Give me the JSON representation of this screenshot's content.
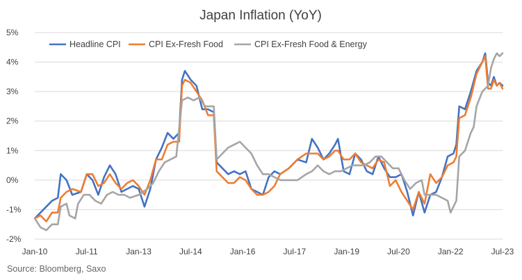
{
  "chart_data": {
    "type": "line",
    "title": "Japan Inflation (YoY)",
    "xlabel": "",
    "ylabel": "",
    "ylim": [
      -2,
      5
    ],
    "y_ticks": [
      "-2%",
      "-1%",
      "0%",
      "1%",
      "2%",
      "3%",
      "4%",
      "5%"
    ],
    "x_ticks": [
      "Jan-10",
      "Jul-11",
      "Jan-13",
      "Jul-14",
      "Jan-16",
      "Jul-17",
      "Jan-19",
      "Jul-20",
      "Jan-22",
      "Jul-23"
    ],
    "x_range": [
      "2010-01",
      "2023-07"
    ],
    "grid": true,
    "legend_position": "top-left",
    "series": [
      {
        "name": "Headline CPI",
        "color": "#4472C4",
        "points": [
          [
            "2010-01",
            -1.3
          ],
          [
            "2010-03",
            -1.1
          ],
          [
            "2010-05",
            -0.9
          ],
          [
            "2010-07",
            -0.7
          ],
          [
            "2010-09",
            -0.6
          ],
          [
            "2010-10",
            0.2
          ],
          [
            "2010-12",
            0.0
          ],
          [
            "2011-02",
            -0.5
          ],
          [
            "2011-05",
            -0.4
          ],
          [
            "2011-07",
            0.2
          ],
          [
            "2011-09",
            0.0
          ],
          [
            "2011-11",
            -0.5
          ],
          [
            "2012-01",
            0.1
          ],
          [
            "2012-03",
            0.5
          ],
          [
            "2012-05",
            0.2
          ],
          [
            "2012-07",
            -0.4
          ],
          [
            "2012-09",
            -0.3
          ],
          [
            "2012-11",
            -0.2
          ],
          [
            "2013-01",
            -0.3
          ],
          [
            "2013-03",
            -0.9
          ],
          [
            "2013-05",
            -0.3
          ],
          [
            "2013-07",
            0.7
          ],
          [
            "2013-09",
            1.1
          ],
          [
            "2013-11",
            1.6
          ],
          [
            "2014-01",
            1.4
          ],
          [
            "2014-03",
            1.6
          ],
          [
            "2014-04",
            3.4
          ],
          [
            "2014-05",
            3.7
          ],
          [
            "2014-07",
            3.4
          ],
          [
            "2014-09",
            3.2
          ],
          [
            "2014-11",
            2.4
          ],
          [
            "2015-01",
            2.4
          ],
          [
            "2015-03",
            2.3
          ],
          [
            "2015-04",
            0.6
          ],
          [
            "2015-06",
            0.4
          ],
          [
            "2015-08",
            0.2
          ],
          [
            "2015-10",
            0.3
          ],
          [
            "2015-12",
            0.2
          ],
          [
            "2016-02",
            0.3
          ],
          [
            "2016-04",
            -0.3
          ],
          [
            "2016-06",
            -0.4
          ],
          [
            "2016-08",
            -0.5
          ],
          [
            "2016-10",
            0.1
          ],
          [
            "2016-12",
            0.3
          ],
          [
            "2017-02",
            0.2
          ],
          [
            "2017-05",
            0.4
          ],
          [
            "2017-08",
            0.7
          ],
          [
            "2017-11",
            0.6
          ],
          [
            "2018-01",
            1.4
          ],
          [
            "2018-03",
            1.1
          ],
          [
            "2018-05",
            0.7
          ],
          [
            "2018-07",
            0.9
          ],
          [
            "2018-09",
            1.2
          ],
          [
            "2018-10",
            1.4
          ],
          [
            "2018-12",
            0.3
          ],
          [
            "2019-02",
            0.2
          ],
          [
            "2019-04",
            0.9
          ],
          [
            "2019-06",
            0.7
          ],
          [
            "2019-08",
            0.3
          ],
          [
            "2019-10",
            0.2
          ],
          [
            "2019-12",
            0.8
          ],
          [
            "2020-02",
            0.4
          ],
          [
            "2020-04",
            0.1
          ],
          [
            "2020-06",
            0.1
          ],
          [
            "2020-08",
            0.2
          ],
          [
            "2020-10",
            -0.4
          ],
          [
            "2020-12",
            -1.2
          ],
          [
            "2021-02",
            -0.4
          ],
          [
            "2021-04",
            -1.1
          ],
          [
            "2021-06",
            -0.5
          ],
          [
            "2021-08",
            -0.4
          ],
          [
            "2021-10",
            0.1
          ],
          [
            "2021-12",
            0.8
          ],
          [
            "2022-02",
            0.9
          ],
          [
            "2022-03",
            1.2
          ],
          [
            "2022-04",
            2.5
          ],
          [
            "2022-06",
            2.4
          ],
          [
            "2022-08",
            3.0
          ],
          [
            "2022-10",
            3.7
          ],
          [
            "2022-12",
            4.0
          ],
          [
            "2023-01",
            4.3
          ],
          [
            "2023-02",
            3.3
          ],
          [
            "2023-03",
            3.2
          ],
          [
            "2023-04",
            3.5
          ],
          [
            "2023-05",
            3.2
          ],
          [
            "2023-06",
            3.3
          ],
          [
            "2023-07",
            3.2
          ]
        ]
      },
      {
        "name": "CPI Ex-Fresh Food",
        "color": "#ED7D31",
        "points": [
          [
            "2010-01",
            -1.3
          ],
          [
            "2010-03",
            -1.2
          ],
          [
            "2010-05",
            -1.4
          ],
          [
            "2010-07",
            -1.1
          ],
          [
            "2010-09",
            -1.1
          ],
          [
            "2010-10",
            -0.6
          ],
          [
            "2010-12",
            -0.4
          ],
          [
            "2011-02",
            -0.3
          ],
          [
            "2011-05",
            -0.4
          ],
          [
            "2011-07",
            0.2
          ],
          [
            "2011-09",
            0.2
          ],
          [
            "2011-11",
            -0.2
          ],
          [
            "2012-01",
            -0.1
          ],
          [
            "2012-03",
            0.2
          ],
          [
            "2012-05",
            -0.1
          ],
          [
            "2012-07",
            -0.3
          ],
          [
            "2012-09",
            -0.1
          ],
          [
            "2012-11",
            0.0
          ],
          [
            "2013-01",
            -0.2
          ],
          [
            "2013-03",
            -0.5
          ],
          [
            "2013-05",
            0.0
          ],
          [
            "2013-07",
            0.7
          ],
          [
            "2013-09",
            0.7
          ],
          [
            "2013-11",
            1.2
          ],
          [
            "2014-01",
            1.3
          ],
          [
            "2014-03",
            1.3
          ],
          [
            "2014-04",
            3.2
          ],
          [
            "2014-05",
            3.4
          ],
          [
            "2014-07",
            3.3
          ],
          [
            "2014-09",
            3.0
          ],
          [
            "2014-11",
            2.7
          ],
          [
            "2015-01",
            2.2
          ],
          [
            "2015-03",
            2.2
          ],
          [
            "2015-04",
            0.3
          ],
          [
            "2015-06",
            0.1
          ],
          [
            "2015-08",
            -0.1
          ],
          [
            "2015-10",
            -0.1
          ],
          [
            "2015-12",
            0.1
          ],
          [
            "2016-02",
            0.0
          ],
          [
            "2016-04",
            -0.3
          ],
          [
            "2016-06",
            -0.5
          ],
          [
            "2016-08",
            -0.5
          ],
          [
            "2016-10",
            -0.4
          ],
          [
            "2016-12",
            -0.2
          ],
          [
            "2017-02",
            0.2
          ],
          [
            "2017-05",
            0.4
          ],
          [
            "2017-08",
            0.7
          ],
          [
            "2017-11",
            0.9
          ],
          [
            "2018-01",
            0.9
          ],
          [
            "2018-03",
            0.9
          ],
          [
            "2018-05",
            0.7
          ],
          [
            "2018-07",
            0.8
          ],
          [
            "2018-09",
            1.0
          ],
          [
            "2018-10",
            1.0
          ],
          [
            "2018-12",
            0.7
          ],
          [
            "2019-02",
            0.7
          ],
          [
            "2019-04",
            0.9
          ],
          [
            "2019-06",
            0.6
          ],
          [
            "2019-08",
            0.5
          ],
          [
            "2019-10",
            0.4
          ],
          [
            "2019-12",
            0.7
          ],
          [
            "2020-02",
            0.6
          ],
          [
            "2020-04",
            -0.2
          ],
          [
            "2020-06",
            0.0
          ],
          [
            "2020-08",
            -0.4
          ],
          [
            "2020-10",
            -0.7
          ],
          [
            "2020-12",
            -1.0
          ],
          [
            "2021-02",
            -0.4
          ],
          [
            "2021-04",
            -0.8
          ],
          [
            "2021-06",
            0.2
          ],
          [
            "2021-08",
            -0.1
          ],
          [
            "2021-10",
            0.1
          ],
          [
            "2021-12",
            0.5
          ],
          [
            "2022-02",
            0.6
          ],
          [
            "2022-03",
            0.8
          ],
          [
            "2022-04",
            2.1
          ],
          [
            "2022-06",
            2.2
          ],
          [
            "2022-08",
            2.8
          ],
          [
            "2022-10",
            3.6
          ],
          [
            "2022-12",
            4.0
          ],
          [
            "2023-01",
            4.2
          ],
          [
            "2023-02",
            3.1
          ],
          [
            "2023-03",
            3.1
          ],
          [
            "2023-04",
            3.4
          ],
          [
            "2023-05",
            3.2
          ],
          [
            "2023-06",
            3.3
          ],
          [
            "2023-07",
            3.1
          ]
        ]
      },
      {
        "name": "CPI Ex-Fresh Food & Energy",
        "color": "#A5A5A5",
        "points": [
          [
            "2010-01",
            -1.3
          ],
          [
            "2010-03",
            -1.6
          ],
          [
            "2010-05",
            -1.7
          ],
          [
            "2010-07",
            -1.5
          ],
          [
            "2010-09",
            -1.5
          ],
          [
            "2010-10",
            -0.9
          ],
          [
            "2010-12",
            -0.8
          ],
          [
            "2011-01",
            -1.2
          ],
          [
            "2011-03",
            -1.3
          ],
          [
            "2011-04",
            -0.8
          ],
          [
            "2011-06",
            -0.5
          ],
          [
            "2011-08",
            -0.5
          ],
          [
            "2011-10",
            -0.7
          ],
          [
            "2011-12",
            -0.8
          ],
          [
            "2012-02",
            -0.5
          ],
          [
            "2012-04",
            -0.4
          ],
          [
            "2012-06",
            -0.5
          ],
          [
            "2012-08",
            -0.5
          ],
          [
            "2012-10",
            -0.6
          ],
          [
            "2013-01",
            -0.5
          ],
          [
            "2013-04",
            -0.3
          ],
          [
            "2013-06",
            -0.1
          ],
          [
            "2013-08",
            0.3
          ],
          [
            "2013-10",
            0.6
          ],
          [
            "2013-12",
            0.7
          ],
          [
            "2014-02",
            0.8
          ],
          [
            "2014-04",
            2.7
          ],
          [
            "2014-06",
            2.8
          ],
          [
            "2014-08",
            2.7
          ],
          [
            "2014-10",
            2.8
          ],
          [
            "2014-12",
            2.5
          ],
          [
            "2015-02",
            2.5
          ],
          [
            "2015-03",
            2.5
          ],
          [
            "2015-04",
            0.7
          ],
          [
            "2015-06",
            0.9
          ],
          [
            "2015-08",
            1.1
          ],
          [
            "2015-10",
            1.2
          ],
          [
            "2015-12",
            1.3
          ],
          [
            "2016-02",
            1.1
          ],
          [
            "2016-04",
            0.9
          ],
          [
            "2016-06",
            0.5
          ],
          [
            "2016-08",
            0.2
          ],
          [
            "2016-10",
            0.2
          ],
          [
            "2016-12",
            0.1
          ],
          [
            "2017-02",
            0.0
          ],
          [
            "2017-05",
            0.0
          ],
          [
            "2017-08",
            0.0
          ],
          [
            "2017-11",
            0.2
          ],
          [
            "2018-01",
            0.3
          ],
          [
            "2018-03",
            0.5
          ],
          [
            "2018-05",
            0.3
          ],
          [
            "2018-07",
            0.2
          ],
          [
            "2018-09",
            0.3
          ],
          [
            "2018-11",
            0.3
          ],
          [
            "2019-01",
            0.4
          ],
          [
            "2019-03",
            0.5
          ],
          [
            "2019-05",
            0.5
          ],
          [
            "2019-07",
            0.5
          ],
          [
            "2019-09",
            0.6
          ],
          [
            "2019-11",
            0.8
          ],
          [
            "2020-01",
            0.8
          ],
          [
            "2020-03",
            0.6
          ],
          [
            "2020-05",
            0.4
          ],
          [
            "2020-07",
            0.4
          ],
          [
            "2020-09",
            0.0
          ],
          [
            "2020-11",
            -0.3
          ],
          [
            "2021-01",
            -0.1
          ],
          [
            "2021-03",
            0.0
          ],
          [
            "2021-04",
            -0.5
          ],
          [
            "2021-06",
            -0.5
          ],
          [
            "2021-08",
            -0.5
          ],
          [
            "2021-10",
            -0.6
          ],
          [
            "2021-12",
            -0.7
          ],
          [
            "2022-01",
            -1.1
          ],
          [
            "2022-02",
            -0.9
          ],
          [
            "2022-03",
            -0.7
          ],
          [
            "2022-04",
            0.8
          ],
          [
            "2022-06",
            1.0
          ],
          [
            "2022-08",
            1.6
          ],
          [
            "2022-09",
            1.8
          ],
          [
            "2022-10",
            2.5
          ],
          [
            "2022-12",
            3.0
          ],
          [
            "2023-02",
            3.2
          ],
          [
            "2023-03",
            3.8
          ],
          [
            "2023-04",
            4.1
          ],
          [
            "2023-05",
            4.3
          ],
          [
            "2023-06",
            4.2
          ],
          [
            "2023-07",
            4.3
          ]
        ]
      }
    ]
  },
  "source_note": "Source: Bloomberg, Saxo"
}
